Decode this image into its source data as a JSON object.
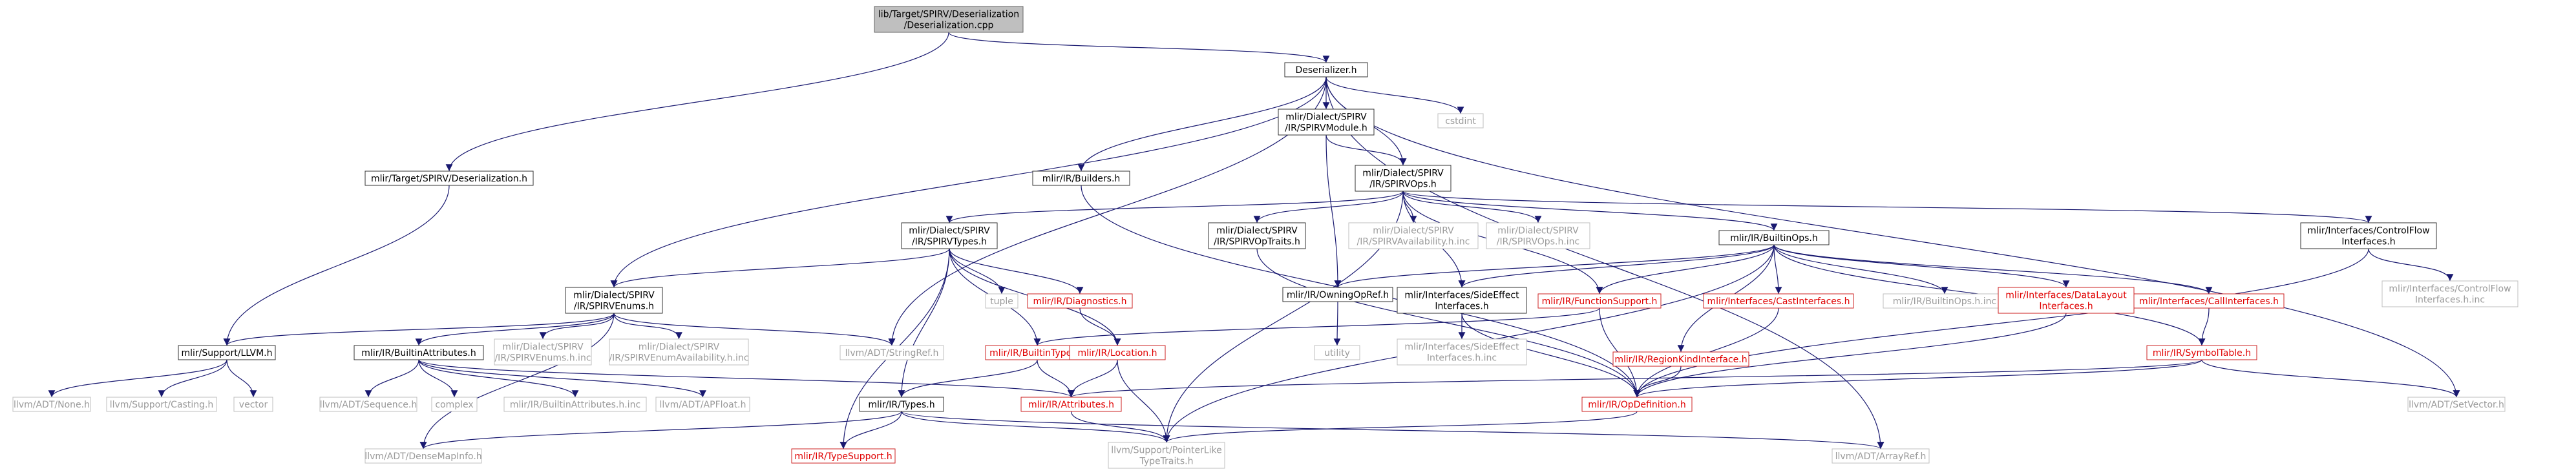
{
  "colors": {
    "edge": "#191970",
    "edge_light": "#7f7fb3",
    "node_border": "#666666",
    "node_border_dark": "#333333",
    "root_fill": "#bfbfbf",
    "gray_border": "#bfbfbf",
    "gray_text": "#9a9a9a",
    "red_text": "#e00000",
    "red_border": "#cc2222"
  },
  "nodes": [
    {
      "id": "root",
      "kind": "root",
      "lines": [
        "lib/Target/SPIRV/Deserialization",
        "/Deserialization.cpp"
      ]
    },
    {
      "id": "deser_h",
      "kind": "black",
      "lines": [
        "Deserializer.h"
      ]
    },
    {
      "id": "target_deser",
      "kind": "black",
      "lines": [
        "mlir/Target/SPIRV/Deserialization.h"
      ]
    },
    {
      "id": "cstdint",
      "kind": "gray",
      "lines": [
        "cstdint"
      ]
    },
    {
      "id": "spirv_module",
      "kind": "black",
      "lines": [
        "mlir/Dialect/SPIRV",
        "/IR/SPIRVModule.h"
      ]
    },
    {
      "id": "builders",
      "kind": "black",
      "lines": [
        "mlir/IR/Builders.h"
      ]
    },
    {
      "id": "spirv_ops",
      "kind": "black",
      "lines": [
        "mlir/Dialect/SPIRV",
        "/IR/SPIRVOps.h"
      ]
    },
    {
      "id": "spirv_types",
      "kind": "black",
      "lines": [
        "mlir/Dialect/SPIRV",
        "/IR/SPIRVTypes.h"
      ]
    },
    {
      "id": "spirv_traits",
      "kind": "black",
      "lines": [
        "mlir/Dialect/SPIRV",
        "/IR/SPIRVOpTraits.h"
      ]
    },
    {
      "id": "spirv_avail_inc",
      "kind": "gray",
      "lines": [
        "mlir/Dialect/SPIRV",
        "/IR/SPIRVAvailability.h.inc"
      ]
    },
    {
      "id": "spirv_ops_inc",
      "kind": "gray",
      "lines": [
        "mlir/Dialect/SPIRV",
        "/IR/SPIRVOps.h.inc"
      ]
    },
    {
      "id": "builtin_ops",
      "kind": "black",
      "lines": [
        "mlir/IR/BuiltinOps.h"
      ]
    },
    {
      "id": "controlflow",
      "kind": "black",
      "lines": [
        "mlir/Interfaces/ControlFlow",
        "Interfaces.h"
      ]
    },
    {
      "id": "controlflow_inc",
      "kind": "gray",
      "lines": [
        "mlir/Interfaces/ControlFlow",
        "Interfaces.h.inc"
      ]
    },
    {
      "id": "spirv_enums",
      "kind": "black",
      "lines": [
        "mlir/Dialect/SPIRV",
        "/IR/SPIRVEnums.h"
      ]
    },
    {
      "id": "tuple",
      "kind": "gray",
      "lines": [
        "tuple"
      ]
    },
    {
      "id": "diagnostics",
      "kind": "red",
      "lines": [
        "mlir/IR/Diagnostics.h"
      ]
    },
    {
      "id": "owning_op_ref",
      "kind": "black",
      "lines": [
        "mlir/IR/OwningOpRef.h"
      ]
    },
    {
      "id": "side_effect",
      "kind": "black",
      "lines": [
        "mlir/Interfaces/SideEffect",
        "Interfaces.h"
      ]
    },
    {
      "id": "function_support",
      "kind": "red",
      "lines": [
        "mlir/IR/FunctionSupport.h"
      ]
    },
    {
      "id": "cast_interfaces",
      "kind": "red",
      "lines": [
        "mlir/Interfaces/CastInterfaces.h"
      ]
    },
    {
      "id": "builtin_ops_inc",
      "kind": "gray",
      "lines": [
        "mlir/IR/BuiltinOps.h.inc"
      ]
    },
    {
      "id": "data_layout",
      "kind": "red",
      "lines": [
        "mlir/Interfaces/DataLayout",
        "Interfaces.h"
      ]
    },
    {
      "id": "call_interfaces",
      "kind": "red",
      "lines": [
        "mlir/Interfaces/CallInterfaces.h"
      ]
    },
    {
      "id": "support_llvm",
      "kind": "black",
      "lines": [
        "mlir/Support/LLVM.h"
      ]
    },
    {
      "id": "builtin_attrs",
      "kind": "black",
      "lines": [
        "mlir/IR/BuiltinAttributes.h"
      ]
    },
    {
      "id": "spirv_enums_inc",
      "kind": "gray",
      "lines": [
        "mlir/Dialect/SPIRV",
        "/IR/SPIRVEnums.h.inc"
      ]
    },
    {
      "id": "spirv_enum_avail_inc",
      "kind": "gray",
      "lines": [
        "mlir/Dialect/SPIRV",
        "/IR/SPIRVEnumAvailability.h.inc"
      ]
    },
    {
      "id": "stringref",
      "kind": "gray",
      "lines": [
        "llvm/ADT/StringRef.h"
      ]
    },
    {
      "id": "builtin_types",
      "kind": "red",
      "lines": [
        "mlir/IR/BuiltinTypes.h"
      ]
    },
    {
      "id": "location",
      "kind": "red",
      "lines": [
        "mlir/IR/Location.h"
      ]
    },
    {
      "id": "utility",
      "kind": "gray",
      "lines": [
        "utility"
      ]
    },
    {
      "id": "side_effect_inc",
      "kind": "gray",
      "lines": [
        "mlir/Interfaces/SideEffect",
        "Interfaces.h.inc"
      ]
    },
    {
      "id": "region_kind",
      "kind": "red",
      "lines": [
        "mlir/IR/RegionKindInterface.h"
      ]
    },
    {
      "id": "symbol_table",
      "kind": "red",
      "lines": [
        "mlir/IR/SymbolTable.h"
      ]
    },
    {
      "id": "none_h",
      "kind": "gray",
      "lines": [
        "llvm/ADT/None.h"
      ]
    },
    {
      "id": "casting_h",
      "kind": "gray",
      "lines": [
        "llvm/Support/Casting.h"
      ]
    },
    {
      "id": "vector",
      "kind": "gray",
      "lines": [
        "vector"
      ]
    },
    {
      "id": "sequence_h",
      "kind": "gray",
      "lines": [
        "llvm/ADT/Sequence.h"
      ]
    },
    {
      "id": "complex",
      "kind": "gray",
      "lines": [
        "complex"
      ]
    },
    {
      "id": "builtin_attrs_inc",
      "kind": "gray",
      "lines": [
        "mlir/IR/BuiltinAttributes.h.inc"
      ]
    },
    {
      "id": "apfloat",
      "kind": "gray",
      "lines": [
        "llvm/ADT/APFloat.h"
      ]
    },
    {
      "id": "ir_types",
      "kind": "black",
      "lines": [
        "mlir/IR/Types.h"
      ]
    },
    {
      "id": "attributes",
      "kind": "red",
      "lines": [
        "mlir/IR/Attributes.h"
      ]
    },
    {
      "id": "op_definition",
      "kind": "red",
      "lines": [
        "mlir/IR/OpDefinition.h"
      ]
    },
    {
      "id": "setvector",
      "kind": "gray",
      "lines": [
        "llvm/ADT/SetVector.h"
      ]
    },
    {
      "id": "densemapinfo",
      "kind": "gray",
      "lines": [
        "llvm/ADT/DenseMapInfo.h"
      ]
    },
    {
      "id": "type_support",
      "kind": "red",
      "lines": [
        "mlir/IR/TypeSupport.h"
      ]
    },
    {
      "id": "pointerlike",
      "kind": "gray",
      "lines": [
        "llvm/Support/PointerLike",
        "TypeTraits.h"
      ]
    },
    {
      "id": "arrayref",
      "kind": "gray",
      "lines": [
        "llvm/ADT/ArrayRef.h"
      ]
    }
  ],
  "edges": [
    [
      "root",
      "deser_h"
    ],
    [
      "root",
      "target_deser"
    ],
    [
      "deser_h",
      "cstdint"
    ],
    [
      "deser_h",
      "spirv_module"
    ],
    [
      "deser_h",
      "builders"
    ],
    [
      "deser_h",
      "spirv_ops"
    ],
    [
      "deser_h",
      "spirv_enums"
    ],
    [
      "deser_h",
      "stringref"
    ],
    [
      "deser_h",
      "setvector"
    ],
    [
      "deser_h",
      "arrayref"
    ],
    [
      "target_deser",
      "support_llvm"
    ],
    [
      "spirv_module",
      "spirv_ops"
    ],
    [
      "spirv_module",
      "owning_op_ref"
    ],
    [
      "builders",
      "op_definition"
    ],
    [
      "spirv_ops",
      "spirv_types"
    ],
    [
      "spirv_ops",
      "spirv_traits"
    ],
    [
      "spirv_ops",
      "spirv_avail_inc"
    ],
    [
      "spirv_ops",
      "spirv_ops_inc"
    ],
    [
      "spirv_ops",
      "builtin_ops"
    ],
    [
      "spirv_ops",
      "controlflow"
    ],
    [
      "spirv_ops",
      "side_effect"
    ],
    [
      "spirv_ops",
      "function_support"
    ],
    [
      "spirv_ops",
      "pointerlike"
    ],
    [
      "spirv_types",
      "spirv_enums"
    ],
    [
      "spirv_types",
      "tuple"
    ],
    [
      "spirv_types",
      "diagnostics"
    ],
    [
      "spirv_types",
      "builtin_types"
    ],
    [
      "spirv_types",
      "location"
    ],
    [
      "spirv_types",
      "ir_types"
    ],
    [
      "spirv_types",
      "type_support"
    ],
    [
      "spirv_traits",
      "op_definition"
    ],
    [
      "builtin_ops",
      "owning_op_ref"
    ],
    [
      "builtin_ops",
      "side_effect"
    ],
    [
      "builtin_ops",
      "function_support"
    ],
    [
      "builtin_ops",
      "cast_interfaces"
    ],
    [
      "builtin_ops",
      "builtin_ops_inc"
    ],
    [
      "builtin_ops",
      "data_layout"
    ],
    [
      "builtin_ops",
      "call_interfaces"
    ],
    [
      "builtin_ops",
      "region_kind"
    ],
    [
      "builtin_ops",
      "symbol_table"
    ],
    [
      "builtin_ops",
      "pointerlike"
    ],
    [
      "controlflow",
      "controlflow_inc"
    ],
    [
      "controlflow",
      "op_definition"
    ],
    [
      "spirv_enums",
      "support_llvm"
    ],
    [
      "spirv_enums",
      "builtin_attrs"
    ],
    [
      "spirv_enums",
      "spirv_enums_inc"
    ],
    [
      "spirv_enums",
      "spirv_enum_avail_inc"
    ],
    [
      "spirv_enums",
      "stringref"
    ],
    [
      "spirv_enums",
      "densemapinfo"
    ],
    [
      "diagnostics",
      "location"
    ],
    [
      "owning_op_ref",
      "utility"
    ],
    [
      "side_effect",
      "side_effect_inc"
    ],
    [
      "side_effect",
      "op_definition"
    ],
    [
      "function_support",
      "builtin_types"
    ],
    [
      "function_support",
      "op_definition"
    ],
    [
      "cast_interfaces",
      "op_definition"
    ],
    [
      "data_layout",
      "op_definition"
    ],
    [
      "call_interfaces",
      "symbol_table"
    ],
    [
      "support_llvm",
      "none_h"
    ],
    [
      "support_llvm",
      "casting_h"
    ],
    [
      "support_llvm",
      "vector"
    ],
    [
      "builtin_attrs",
      "sequence_h"
    ],
    [
      "builtin_attrs",
      "complex"
    ],
    [
      "builtin_attrs",
      "builtin_attrs_inc"
    ],
    [
      "builtin_attrs",
      "apfloat"
    ],
    [
      "builtin_attrs",
      "attributes"
    ],
    [
      "builtin_types",
      "ir_types"
    ],
    [
      "builtin_types",
      "attributes"
    ],
    [
      "location",
      "attributes"
    ],
    [
      "location",
      "pointerlike"
    ],
    [
      "region_kind",
      "op_definition"
    ],
    [
      "symbol_table",
      "op_definition"
    ],
    [
      "symbol_table",
      "attributes"
    ],
    [
      "symbol_table",
      "setvector"
    ],
    [
      "ir_types",
      "densemapinfo"
    ],
    [
      "ir_types",
      "type_support"
    ],
    [
      "ir_types",
      "pointerlike"
    ],
    [
      "ir_types",
      "arrayref"
    ],
    [
      "attributes",
      "pointerlike"
    ],
    [
      "op_definition",
      "pointerlike"
    ]
  ]
}
